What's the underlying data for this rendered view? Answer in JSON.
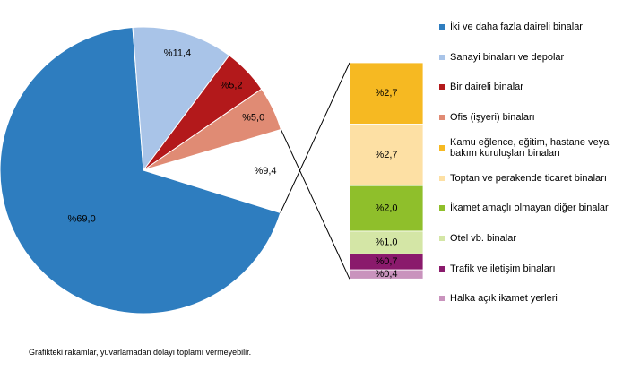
{
  "chart_data": {
    "type": "pie-of-bar",
    "pie": {
      "categories": [
        "İki ve daha fazla daireli binalar",
        "Sanayi binaları ve depolar",
        "Bir daireli binalar",
        "Ofis (işyeri) binaları",
        null
      ],
      "values": [
        69.0,
        11.4,
        5.2,
        5.0,
        9.4
      ],
      "value_labels": [
        "%69,0",
        "%11,4",
        "%5,2",
        "%5,0",
        "%9,4"
      ],
      "colors": [
        "#2e7dbf",
        "#a9c4e8",
        "#b3191b",
        "#e08b74",
        null
      ]
    },
    "bar": {
      "categories": [
        "Kamu eğlence, eğitim, hastane veya bakım kuruluşları binaları",
        "Toptan ve perakende ticaret binaları",
        "İkamet amaçlı olmayan diğer binalar",
        "Otel vb. binalar",
        "Trafik ve iletişim binaları",
        "Halka açık ikamet yerleri"
      ],
      "values": [
        2.7,
        2.7,
        2.0,
        1.0,
        0.7,
        0.4
      ],
      "value_labels": [
        "%2,7",
        "%2,7",
        "%2,0",
        "%1,0",
        "%0,7",
        "%0,4"
      ],
      "colors": [
        "#f6b922",
        "#fde0a4",
        "#8fbf2b",
        "#d4e6a6",
        "#8a1a6c",
        "#c993bd"
      ]
    },
    "note": "Grafikteki rakamlar, yuvarlamadan dolayı toplamı vermeyebilir."
  }
}
